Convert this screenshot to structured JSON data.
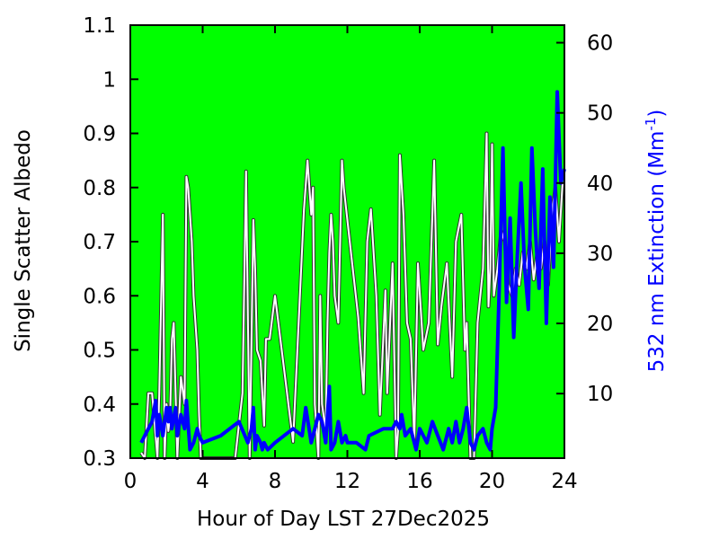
{
  "chart_data": {
    "type": "line",
    "title": "",
    "xlabel": "Hour of Day LST 27Dec2025",
    "ylabel_left": "Single Scatter Albedo",
    "ylabel_right": {
      "text": "532 nm Extinction (Mm",
      "superscript": "-1",
      "close": ")"
    },
    "xlim": [
      0,
      24
    ],
    "ylim_left": [
      0.3,
      1.1
    ],
    "ylim_right": [
      0.8,
      62.5
    ],
    "x_ticks": [
      0,
      4,
      8,
      12,
      16,
      20,
      24
    ],
    "y_left_ticks": [
      "0.3",
      "0.4",
      "0.5",
      "0.6",
      "0.7",
      "0.8",
      "0.9",
      "1",
      "1.1"
    ],
    "y_right_ticks": [
      10,
      20,
      30,
      40,
      50,
      60
    ],
    "background_color": "#00ff00",
    "grid": false,
    "series": [
      {
        "axis": "left",
        "color": "#ffffff",
        "x": [
          0.6,
          0.8,
          1.0,
          1.2,
          1.5,
          1.6,
          1.8,
          1.9,
          2.0,
          2.1,
          2.2,
          2.3,
          2.4,
          2.6,
          2.8,
          3.0,
          3.1,
          3.2,
          3.4,
          3.5,
          3.7,
          3.8,
          3.9,
          4.0,
          4.2,
          5.0,
          5.8,
          6.2,
          6.4,
          6.6,
          6.8,
          6.9,
          7.0,
          7.2,
          7.4,
          7.5,
          7.6,
          7.7,
          8.0,
          9.0,
          9.6,
          9.8,
          10.0,
          10.1,
          10.2,
          10.4,
          10.5,
          10.6,
          10.8,
          10.9,
          11.0,
          11.1,
          11.2,
          11.3,
          11.5,
          11.7,
          11.8,
          12.2,
          12.6,
          12.9,
          13.1,
          13.3,
          13.6,
          13.8,
          14.1,
          14.2,
          14.5,
          14.7,
          14.8,
          14.9,
          15.1,
          15.3,
          15.5,
          15.7,
          15.9,
          16.2,
          16.5,
          16.8,
          17.0,
          17.2,
          17.5,
          17.8,
          18.0,
          18.3,
          18.5,
          18.6,
          18.8,
          19.0,
          19.2,
          19.5,
          19.7,
          19.8,
          19.9,
          20.0,
          20.1,
          20.3,
          20.5,
          20.7,
          20.9,
          21.1,
          21.3,
          21.5,
          21.7,
          21.9,
          22.1,
          22.3,
          22.5,
          22.7,
          22.9,
          23.1,
          23.3,
          23.5,
          23.7,
          23.9
        ],
        "values": [
          0.31,
          0.3,
          0.42,
          0.42,
          0.3,
          0.42,
          0.75,
          0.3,
          0.4,
          0.35,
          0.38,
          0.52,
          0.55,
          0.3,
          0.45,
          0.4,
          0.82,
          0.8,
          0.7,
          0.6,
          0.5,
          0.38,
          0.3,
          0.3,
          0.3,
          0.3,
          0.3,
          0.42,
          0.83,
          0.3,
          0.74,
          0.65,
          0.5,
          0.48,
          0.36,
          0.52,
          0.52,
          0.52,
          0.6,
          0.33,
          0.76,
          0.85,
          0.75,
          0.8,
          0.4,
          0.3,
          0.6,
          0.4,
          0.35,
          0.55,
          0.68,
          0.75,
          0.7,
          0.6,
          0.55,
          0.85,
          0.8,
          0.68,
          0.56,
          0.42,
          0.7,
          0.76,
          0.6,
          0.38,
          0.61,
          0.42,
          0.66,
          0.3,
          0.35,
          0.86,
          0.75,
          0.55,
          0.52,
          0.33,
          0.66,
          0.5,
          0.55,
          0.85,
          0.51,
          0.58,
          0.66,
          0.45,
          0.7,
          0.75,
          0.5,
          0.55,
          0.3,
          0.3,
          0.55,
          0.65,
          0.9,
          0.58,
          0.65,
          0.88,
          0.6,
          0.65,
          0.72,
          0.7,
          0.62,
          0.6,
          0.65,
          0.62,
          0.68,
          0.65,
          0.7,
          0.63,
          0.68,
          0.65,
          0.7,
          0.62,
          0.75,
          0.8,
          0.7,
          0.81
        ]
      },
      {
        "axis": "right",
        "color": "#0000ff",
        "x": [
          0.6,
          0.8,
          1.0,
          1.2,
          1.4,
          1.5,
          1.6,
          1.8,
          2.0,
          2.1,
          2.2,
          2.3,
          2.5,
          2.6,
          2.8,
          3.0,
          3.1,
          3.3,
          3.5,
          3.7,
          3.8,
          4.0,
          5.0,
          6.0,
          6.5,
          6.7,
          6.8,
          6.9,
          7.0,
          7.2,
          7.3,
          7.4,
          7.6,
          8.0,
          9.0,
          9.5,
          9.7,
          10.0,
          10.2,
          10.4,
          10.6,
          10.8,
          11.0,
          11.1,
          11.3,
          11.5,
          11.7,
          11.9,
          12.0,
          12.5,
          13.0,
          13.2,
          14.0,
          14.5,
          14.7,
          14.9,
          15.0,
          15.2,
          15.5,
          15.8,
          16.0,
          16.2,
          16.4,
          16.7,
          17.0,
          17.3,
          17.6,
          17.8,
          18.0,
          18.2,
          18.4,
          18.6,
          18.8,
          19.0,
          19.2,
          19.5,
          19.7,
          19.9,
          20.0,
          20.2,
          20.4,
          20.6,
          20.8,
          21.0,
          21.2,
          21.4,
          21.6,
          21.8,
          22.0,
          22.2,
          22.4,
          22.6,
          22.8,
          23.0,
          23.2,
          23.4,
          23.6,
          23.8,
          24.0
        ],
        "values": [
          3,
          4,
          5,
          6,
          9,
          4,
          7,
          4,
          8,
          6,
          8,
          5,
          8,
          4,
          7,
          5,
          9,
          2,
          3,
          5,
          4,
          3,
          4,
          6,
          3,
          5,
          8,
          2,
          4,
          3,
          2,
          3,
          2,
          3,
          5,
          4,
          8,
          3,
          5,
          7,
          6,
          3,
          11,
          2,
          3,
          6,
          3,
          4,
          3,
          3,
          2,
          4,
          5,
          5,
          6,
          5,
          7,
          4,
          5,
          2,
          5,
          4,
          3,
          6,
          4,
          2,
          5,
          3,
          6,
          3,
          5,
          8,
          3,
          2,
          4,
          5,
          3,
          2,
          5,
          8,
          25,
          45,
          23,
          35,
          18,
          30,
          40,
          28,
          22,
          45,
          33,
          25,
          42,
          20,
          38,
          28,
          53,
          40,
          42
        ]
      }
    ]
  }
}
